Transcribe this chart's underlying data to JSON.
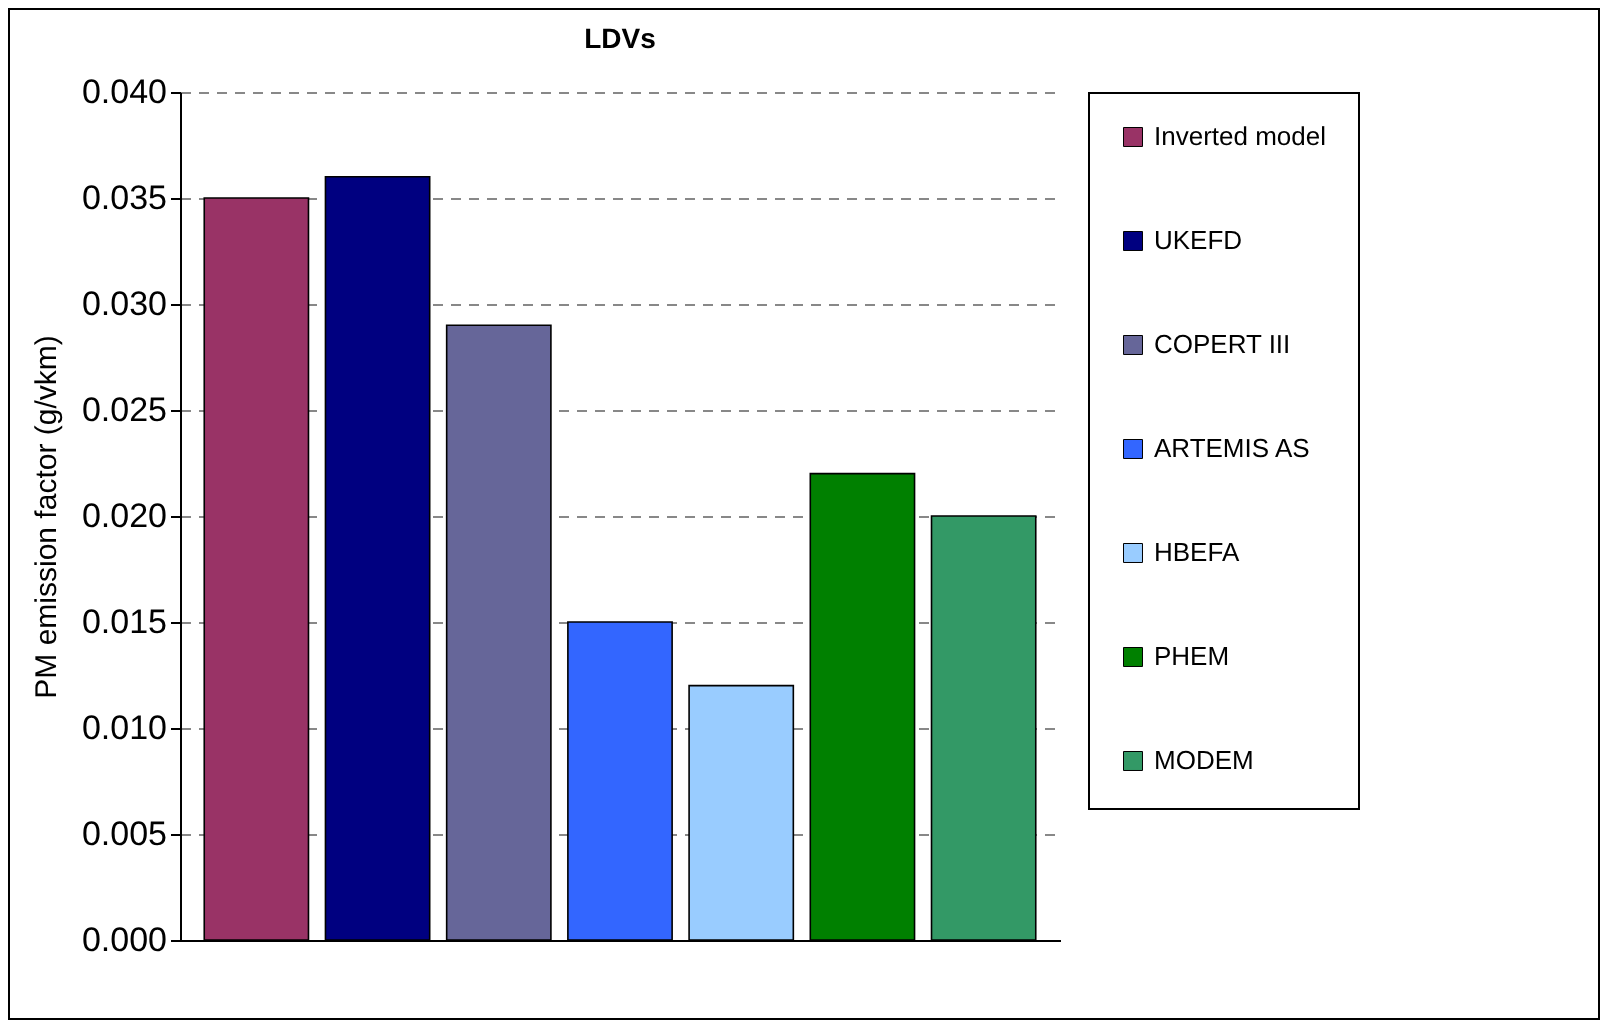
{
  "chart_data": {
    "type": "bar",
    "title": "LDVs",
    "ylabel": "PM emission factor (g/vkm)",
    "categories": [
      null
    ],
    "series": [
      {
        "name": "Inverted model",
        "color": "#993366",
        "values": [
          0.035
        ]
      },
      {
        "name": "UKEFD",
        "color": "#000080",
        "values": [
          0.036
        ]
      },
      {
        "name": "COPERT III",
        "color": "#666699",
        "values": [
          0.029
        ]
      },
      {
        "name": "ARTEMIS AS",
        "color": "#3366ff",
        "values": [
          0.015
        ]
      },
      {
        "name": "HBEFA",
        "color": "#99ccff",
        "values": [
          0.012
        ]
      },
      {
        "name": "PHEM",
        "color": "#008000",
        "values": [
          0.022
        ]
      },
      {
        "name": "MODEM",
        "color": "#339966",
        "values": [
          0.02
        ]
      }
    ],
    "ylim": [
      0,
      0.04
    ],
    "yticks": [
      {
        "value": 0,
        "label": "0.000"
      },
      {
        "value": 0.005,
        "label": "0.005"
      },
      {
        "value": 0.01,
        "label": "0.010"
      },
      {
        "value": 0.015,
        "label": "0.015"
      },
      {
        "value": 0.02,
        "label": "0.020"
      },
      {
        "value": 0.025,
        "label": "0.025"
      },
      {
        "value": 0.03,
        "label": "0.030"
      },
      {
        "value": 0.035,
        "label": "0.035"
      },
      {
        "value": 0.04,
        "label": "0.040"
      }
    ],
    "grid": "y",
    "legend": "right",
    "tick_labels": "y"
  }
}
